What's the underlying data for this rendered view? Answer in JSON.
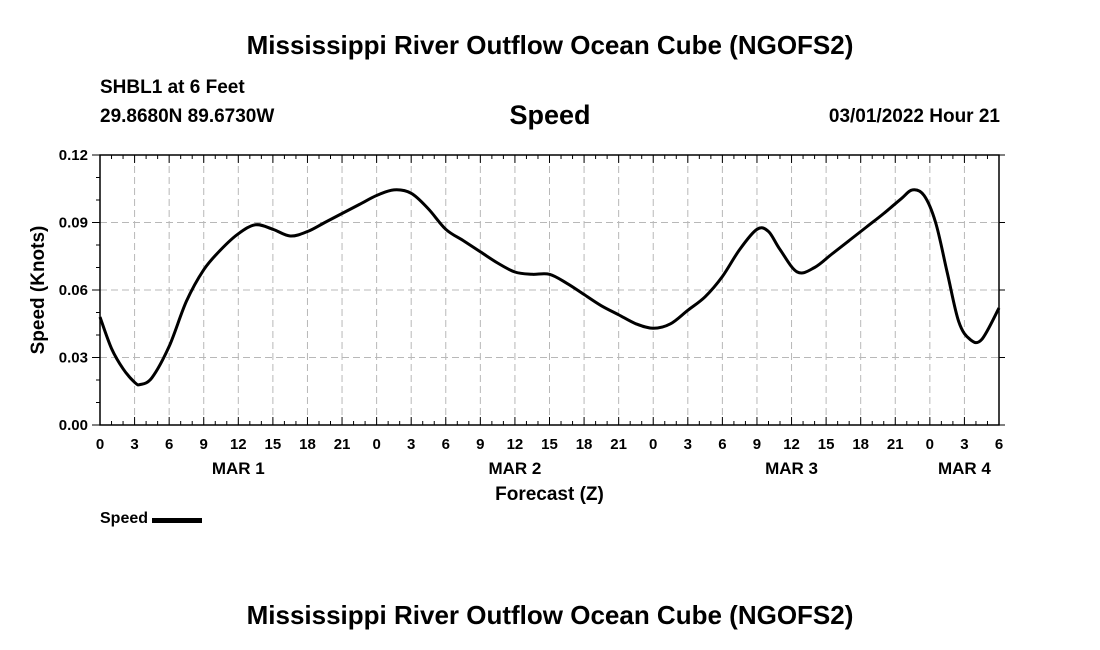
{
  "page": {
    "title": "Mississippi River Outflow Ocean Cube (NGOFS2)",
    "title_repeat": "Mississippi River Outflow Ocean Cube (NGOFS2)",
    "station": "SHBL1 at 6 Feet",
    "coordinates": "29.8680N  89.6730W",
    "variable": "Speed",
    "datetime": "03/01/2022 Hour 21"
  },
  "chart_data": {
    "type": "line",
    "title": "Speed",
    "xlabel": "Forecast (Z)",
    "ylabel": "Speed (Knots)",
    "x_unit": "hours from 03/01 00Z",
    "xlim": [
      0,
      78
    ],
    "ylim": [
      0,
      0.12
    ],
    "grid": true,
    "y_ticks": [
      "0.00",
      "0.03",
      "0.06",
      "0.09",
      "0.12"
    ],
    "x_tick_labels": [
      "0",
      "3",
      "6",
      "9",
      "12",
      "15",
      "18",
      "21",
      "0",
      "3",
      "6",
      "9",
      "12",
      "15",
      "18",
      "21",
      "0",
      "3",
      "6",
      "9",
      "12",
      "15",
      "18",
      "21",
      "0",
      "3",
      "6"
    ],
    "day_labels": [
      {
        "label": "MAR 1",
        "hour": 12
      },
      {
        "label": "MAR 2",
        "hour": 36
      },
      {
        "label": "MAR 3",
        "hour": 60
      },
      {
        "label": "MAR 4",
        "hour": 75
      }
    ],
    "legend": {
      "position": "bottom-left",
      "entries": [
        "Speed"
      ]
    },
    "series": [
      {
        "name": "Speed",
        "color": "#000000",
        "x": [
          0,
          1,
          2,
          3,
          3.5,
          4.5,
          6,
          7.5,
          9,
          10.5,
          12,
          13.5,
          15,
          16.5,
          18,
          19.5,
          21,
          22.5,
          24,
          25.5,
          27,
          28.5,
          30,
          31.5,
          33,
          34.5,
          36,
          37.5,
          39,
          40.5,
          42,
          43.5,
          45,
          46.5,
          48,
          49.5,
          51,
          52.5,
          54,
          55.5,
          57,
          58,
          59,
          60.5,
          62,
          63.5,
          65,
          66.5,
          68,
          69.5,
          70.5,
          71.5,
          72.5,
          73.5,
          74.5,
          75.5,
          76.5,
          78
        ],
        "y": [
          0.048,
          0.034,
          0.025,
          0.019,
          0.018,
          0.021,
          0.035,
          0.055,
          0.069,
          0.078,
          0.085,
          0.089,
          0.087,
          0.084,
          0.086,
          0.09,
          0.094,
          0.098,
          0.102,
          0.1045,
          0.103,
          0.096,
          0.087,
          0.082,
          0.077,
          0.072,
          0.068,
          0.067,
          0.067,
          0.063,
          0.058,
          0.053,
          0.049,
          0.045,
          0.043,
          0.045,
          0.051,
          0.057,
          0.066,
          0.078,
          0.087,
          0.086,
          0.078,
          0.068,
          0.07,
          0.076,
          0.082,
          0.088,
          0.094,
          0.1005,
          0.1045,
          0.102,
          0.09,
          0.068,
          0.046,
          0.038,
          0.038,
          0.052
        ]
      }
    ]
  }
}
